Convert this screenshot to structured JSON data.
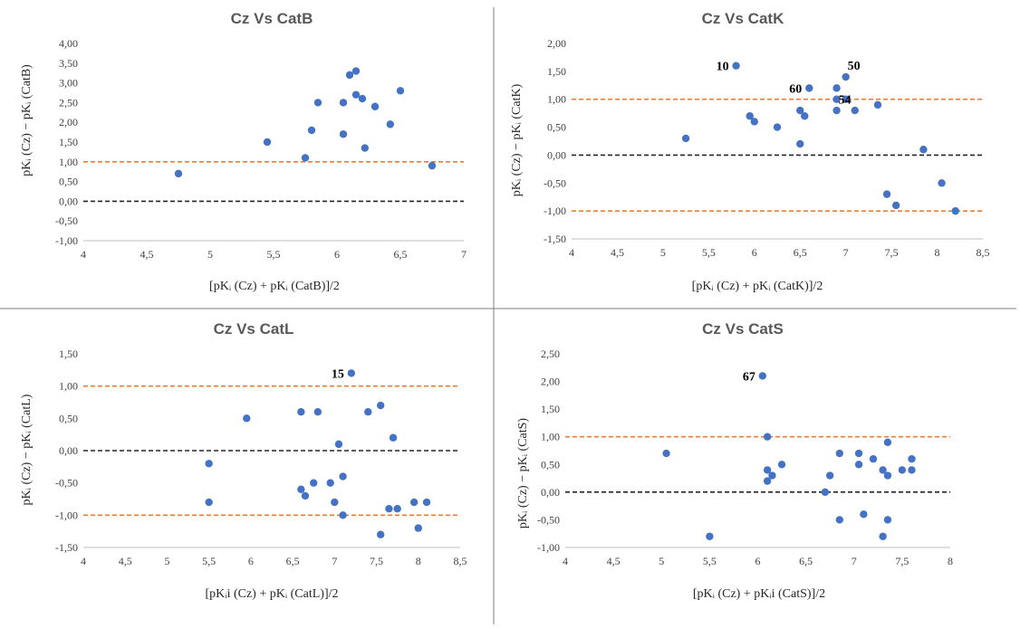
{
  "chart_data": [
    {
      "type": "scatter",
      "title": "Cz Vs CatB",
      "xlabel": "[pKᵢ (Cz) + pKᵢ (CatB)]/2",
      "ylabel": "pKᵢ (Cz) − pKᵢ (CatB)",
      "xlim": [
        4,
        7
      ],
      "ylim": [
        -1,
        4
      ],
      "x_ticks": [
        "4",
        "4,5",
        "5",
        "5,5",
        "6",
        "6,5",
        "7"
      ],
      "y_ticks": [
        "-1,00",
        "-0,50",
        "0,00",
        "0,50",
        "1,00",
        "1,50",
        "2,00",
        "2,50",
        "3,00",
        "3,50",
        "4,00"
      ],
      "reference_lines": [
        {
          "y": 0,
          "color": "#262626",
          "style": "dashed"
        },
        {
          "y": 1,
          "color": "#ED7D31",
          "style": "dashed"
        }
      ],
      "marker_color": "#4472C4",
      "points": [
        {
          "x": 4.75,
          "y": 0.7
        },
        {
          "x": 5.45,
          "y": 1.5
        },
        {
          "x": 5.75,
          "y": 1.1
        },
        {
          "x": 5.8,
          "y": 1.8
        },
        {
          "x": 5.85,
          "y": 2.5
        },
        {
          "x": 6.05,
          "y": 1.7
        },
        {
          "x": 6.05,
          "y": 2.5
        },
        {
          "x": 6.1,
          "y": 3.2
        },
        {
          "x": 6.15,
          "y": 3.3
        },
        {
          "x": 6.15,
          "y": 2.7
        },
        {
          "x": 6.2,
          "y": 2.6
        },
        {
          "x": 6.22,
          "y": 1.35
        },
        {
          "x": 6.3,
          "y": 2.4
        },
        {
          "x": 6.42,
          "y": 1.95
        },
        {
          "x": 6.5,
          "y": 2.8
        },
        {
          "x": 6.75,
          "y": 0.9
        }
      ],
      "annotations": []
    },
    {
      "type": "scatter",
      "title": "Cz Vs CatK",
      "xlabel": "[pKᵢ (Cz) + pKᵢ (CatK)]/2",
      "ylabel": "pKᵢ (Cz) − pKᵢ (CatK)",
      "xlim": [
        4,
        8.5
      ],
      "ylim": [
        -1.5,
        2
      ],
      "x_ticks": [
        "4",
        "4,5",
        "5",
        "5,5",
        "6",
        "6,5",
        "7",
        "7,5",
        "8",
        "8,5"
      ],
      "y_ticks": [
        "-1,50",
        "-1,00",
        "-0,50",
        "0,00",
        "0,50",
        "1,00",
        "1,50",
        "2,00"
      ],
      "reference_lines": [
        {
          "y": 0,
          "color": "#262626",
          "style": "dashed"
        },
        {
          "y": 1,
          "color": "#ED7D31",
          "style": "dashed"
        },
        {
          "y": -1,
          "color": "#ED7D31",
          "style": "dashed"
        }
      ],
      "marker_color": "#4472C4",
      "points": [
        {
          "x": 5.25,
          "y": 0.3
        },
        {
          "x": 5.8,
          "y": 1.6
        },
        {
          "x": 5.95,
          "y": 0.7
        },
        {
          "x": 6.0,
          "y": 0.6
        },
        {
          "x": 6.25,
          "y": 0.5
        },
        {
          "x": 6.5,
          "y": 0.8
        },
        {
          "x": 6.5,
          "y": 0.2
        },
        {
          "x": 6.55,
          "y": 0.7
        },
        {
          "x": 6.6,
          "y": 1.2
        },
        {
          "x": 6.9,
          "y": 1.2
        },
        {
          "x": 6.9,
          "y": 1.0
        },
        {
          "x": 6.9,
          "y": 0.8
        },
        {
          "x": 7.0,
          "y": 1.4
        },
        {
          "x": 7.0,
          "y": 1.0
        },
        {
          "x": 7.1,
          "y": 0.8
        },
        {
          "x": 7.35,
          "y": 0.9
        },
        {
          "x": 7.45,
          "y": -0.7
        },
        {
          "x": 7.55,
          "y": -0.9
        },
        {
          "x": 7.85,
          "y": 0.1
        },
        {
          "x": 8.05,
          "y": -0.5
        },
        {
          "x": 8.2,
          "y": -1.0
        }
      ],
      "annotations": [
        {
          "text": "10",
          "x": 5.8,
          "y": 1.6
        },
        {
          "text": "50",
          "x": 7.0,
          "y": 1.4
        },
        {
          "text": "60",
          "x": 6.6,
          "y": 1.2
        },
        {
          "text": "54",
          "x": 6.9,
          "y": 1.2
        }
      ]
    },
    {
      "type": "scatter",
      "title": "Cz Vs CatL",
      "xlabel": "[pKᵢi (Cz) + pKᵢ (CatL)]/2",
      "ylabel": "pKᵢ (Cz) − pKᵢ (CatL)",
      "xlim": [
        4,
        8.5
      ],
      "ylim": [
        -1.5,
        1.5
      ],
      "x_ticks": [
        "4",
        "4,5",
        "5",
        "5,5",
        "6",
        "6,5",
        "7",
        "7,5",
        "8",
        "8,5"
      ],
      "y_ticks": [
        "-1,50",
        "-1,00",
        "-0,50",
        "0,00",
        "0,50",
        "1,00",
        "1,50"
      ],
      "reference_lines": [
        {
          "y": 0,
          "color": "#262626",
          "style": "dashed"
        },
        {
          "y": 1,
          "color": "#ED7D31",
          "style": "dashed"
        },
        {
          "y": -1,
          "color": "#ED7D31",
          "style": "dashed"
        }
      ],
      "marker_color": "#4472C4",
      "points": [
        {
          "x": 5.5,
          "y": -0.2
        },
        {
          "x": 5.5,
          "y": -0.8
        },
        {
          "x": 5.95,
          "y": 0.5
        },
        {
          "x": 6.6,
          "y": 0.6
        },
        {
          "x": 6.6,
          "y": -0.6
        },
        {
          "x": 6.65,
          "y": -0.7
        },
        {
          "x": 6.75,
          "y": -0.5
        },
        {
          "x": 6.8,
          "y": 0.6
        },
        {
          "x": 6.95,
          "y": -0.5
        },
        {
          "x": 7.0,
          "y": -0.8
        },
        {
          "x": 7.05,
          "y": 0.1
        },
        {
          "x": 7.1,
          "y": -0.4
        },
        {
          "x": 7.1,
          "y": -1.0
        },
        {
          "x": 7.2,
          "y": 1.2
        },
        {
          "x": 7.4,
          "y": 0.6
        },
        {
          "x": 7.55,
          "y": 0.7
        },
        {
          "x": 7.55,
          "y": -1.3
        },
        {
          "x": 7.65,
          "y": -0.9
        },
        {
          "x": 7.7,
          "y": 0.2
        },
        {
          "x": 7.75,
          "y": -0.9
        },
        {
          "x": 7.95,
          "y": -0.8
        },
        {
          "x": 8.0,
          "y": -1.2
        },
        {
          "x": 8.1,
          "y": -0.8
        }
      ],
      "annotations": [
        {
          "text": "15",
          "x": 7.2,
          "y": 1.2
        }
      ]
    },
    {
      "type": "scatter",
      "title": "Cz Vs CatS",
      "xlabel": "[pKᵢ (Cz) + pKᵢi (CatS)]/2",
      "ylabel": "pKᵢ (Cz) − pKᵢ (CatS)",
      "xlim": [
        4,
        8
      ],
      "ylim": [
        -1,
        2.5
      ],
      "x_ticks": [
        "4",
        "4,5",
        "5",
        "5,5",
        "6",
        "6,5",
        "7",
        "7,5",
        "8"
      ],
      "y_ticks": [
        "-1,00",
        "-0,50",
        "0,00",
        "0,50",
        "1,00",
        "1,50",
        "2,00",
        "2,50"
      ],
      "reference_lines": [
        {
          "y": 0,
          "color": "#262626",
          "style": "dashed"
        },
        {
          "y": 1,
          "color": "#ED7D31",
          "style": "dashed"
        }
      ],
      "marker_color": "#4472C4",
      "points": [
        {
          "x": 5.05,
          "y": 0.7
        },
        {
          "x": 5.5,
          "y": -0.8
        },
        {
          "x": 6.05,
          "y": 2.1
        },
        {
          "x": 6.1,
          "y": 1.0
        },
        {
          "x": 6.1,
          "y": 0.4
        },
        {
          "x": 6.1,
          "y": 0.2
        },
        {
          "x": 6.15,
          "y": 0.3
        },
        {
          "x": 6.25,
          "y": 0.5
        },
        {
          "x": 6.7,
          "y": 0.0
        },
        {
          "x": 6.75,
          "y": 0.3
        },
        {
          "x": 6.85,
          "y": 0.7
        },
        {
          "x": 6.85,
          "y": -0.5
        },
        {
          "x": 7.05,
          "y": 0.7
        },
        {
          "x": 7.05,
          "y": 0.5
        },
        {
          "x": 7.1,
          "y": -0.4
        },
        {
          "x": 7.2,
          "y": 0.6
        },
        {
          "x": 7.3,
          "y": 0.4
        },
        {
          "x": 7.3,
          "y": -0.8
        },
        {
          "x": 7.35,
          "y": 0.9
        },
        {
          "x": 7.35,
          "y": 0.3
        },
        {
          "x": 7.35,
          "y": -0.5
        },
        {
          "x": 7.5,
          "y": 0.4
        },
        {
          "x": 7.6,
          "y": 0.6
        },
        {
          "x": 7.6,
          "y": 0.4
        }
      ],
      "annotations": [
        {
          "text": "67",
          "x": 6.05,
          "y": 2.1
        }
      ]
    }
  ]
}
